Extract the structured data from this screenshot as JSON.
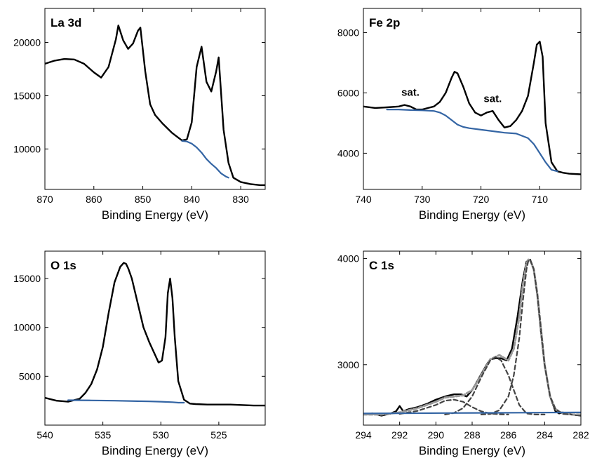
{
  "colors": {
    "spectrum": "#000000",
    "background_line": "#3465a4",
    "fit_envelope": "#9a9a9a",
    "fit_component": "#444444"
  },
  "chart_data": [
    {
      "id": "la3d",
      "type": "line",
      "title": "La 3d",
      "xlabel": "Binding Energy (eV)",
      "ylabel": "",
      "xlim": [
        870,
        825
      ],
      "ylim": [
        6200,
        23200
      ],
      "xticks": [
        870,
        860,
        850,
        840,
        830
      ],
      "xtick_labels": [
        "870",
        "860",
        "850",
        "840",
        "830"
      ],
      "yticks": [
        10000,
        15000,
        20000
      ],
      "ytick_labels": [
        "10000",
        "15000",
        "20000"
      ],
      "annotations": [],
      "series": [
        {
          "role": "spectrum",
          "x": [
            870,
            868,
            866,
            864,
            862,
            860,
            858.5,
            857,
            855.5,
            855,
            854,
            853,
            852,
            851,
            850.5,
            849.5,
            848.5,
            847.5,
            846,
            844,
            842,
            841,
            840,
            839,
            838,
            837,
            836,
            835,
            834.5,
            833.5,
            832.5,
            831.5,
            830,
            828,
            826,
            825
          ],
          "y": [
            18000,
            18300,
            18450,
            18400,
            18000,
            17200,
            16700,
            17700,
            20300,
            21600,
            20200,
            19400,
            19900,
            21100,
            21400,
            17300,
            14200,
            13200,
            12400,
            11500,
            10800,
            10900,
            12500,
            17700,
            19600,
            16300,
            15400,
            17300,
            18600,
            11800,
            8700,
            7300,
            6900,
            6700,
            6600,
            6600
          ]
        },
        {
          "role": "background",
          "x": [
            842,
            841,
            840,
            839,
            838,
            837,
            836,
            835,
            834,
            833,
            832.5
          ],
          "y": [
            10750,
            10700,
            10500,
            10150,
            9650,
            9050,
            8600,
            8200,
            7700,
            7400,
            7300
          ]
        }
      ]
    },
    {
      "id": "fe2p",
      "type": "line",
      "title": "Fe 2p",
      "xlabel": "Binding Energy (eV)",
      "ylabel": "",
      "xlim": [
        740,
        703
      ],
      "ylim": [
        2800,
        8800
      ],
      "xticks": [
        740,
        730,
        720,
        710
      ],
      "xtick_labels": [
        "740",
        "730",
        "720",
        "710"
      ],
      "yticks": [
        4000,
        6000,
        8000
      ],
      "ytick_labels": [
        "4000",
        "6000",
        "8000"
      ],
      "annotations": [
        "sat.",
        "sat."
      ],
      "series": [
        {
          "role": "spectrum",
          "x": [
            740,
            738,
            736,
            734,
            733,
            732,
            731,
            730,
            729,
            728,
            727,
            726,
            725,
            724.5,
            724,
            723,
            722,
            721,
            720,
            719,
            718,
            717,
            716,
            715,
            714,
            713,
            712,
            711,
            710.5,
            710,
            709.5,
            709,
            708,
            707,
            706,
            705,
            703
          ],
          "y": [
            5550,
            5500,
            5520,
            5550,
            5600,
            5550,
            5450,
            5450,
            5500,
            5550,
            5700,
            6000,
            6500,
            6700,
            6650,
            6200,
            5650,
            5350,
            5250,
            5350,
            5400,
            5100,
            4850,
            4900,
            5100,
            5400,
            5900,
            7000,
            7600,
            7700,
            7200,
            5000,
            3700,
            3400,
            3350,
            3320,
            3300
          ]
        },
        {
          "role": "background",
          "x": [
            736,
            734,
            732,
            730,
            728,
            727,
            726,
            725,
            724,
            723,
            722,
            720,
            718,
            716,
            714,
            712,
            711,
            710,
            709,
            708,
            707
          ],
          "y": [
            5450,
            5450,
            5430,
            5420,
            5400,
            5350,
            5250,
            5100,
            4950,
            4870,
            4830,
            4780,
            4730,
            4680,
            4650,
            4500,
            4300,
            4000,
            3700,
            3450,
            3400
          ]
        }
      ]
    },
    {
      "id": "o1s",
      "type": "line",
      "title": "O 1s",
      "xlabel": "Binding Energy (eV)",
      "ylabel": "",
      "xlim": [
        540,
        521
      ],
      "ylim": [
        0,
        17800
      ],
      "xticks": [
        540,
        535,
        530,
        525
      ],
      "xtick_labels": [
        "540",
        "535",
        "530",
        "525"
      ],
      "yticks": [
        5000,
        10000,
        15000
      ],
      "ytick_labels": [
        "5000",
        "10000",
        "15000"
      ],
      "annotations": [],
      "series": [
        {
          "role": "spectrum",
          "x": [
            540,
            539,
            538,
            537,
            536.5,
            536,
            535.5,
            535,
            534.5,
            534,
            533.5,
            533.2,
            533,
            532.8,
            532.5,
            532,
            531.5,
            531,
            530.5,
            530.2,
            529.9,
            529.6,
            529.4,
            529.2,
            529,
            528.8,
            528.5,
            528,
            527.5,
            527,
            526,
            524,
            522,
            521
          ],
          "y": [
            2800,
            2500,
            2400,
            2700,
            3300,
            4200,
            5700,
            8000,
            11500,
            14600,
            16200,
            16600,
            16500,
            16000,
            15000,
            12500,
            10000,
            8500,
            7200,
            6400,
            6600,
            9000,
            13500,
            15000,
            13000,
            9000,
            4500,
            2600,
            2200,
            2150,
            2100,
            2100,
            2000,
            2000
          ]
        },
        {
          "role": "background",
          "x": [
            538,
            536,
            534,
            532,
            531,
            530,
            529,
            528.5,
            528
          ],
          "y": [
            2550,
            2530,
            2500,
            2450,
            2430,
            2400,
            2350,
            2300,
            2300
          ]
        }
      ]
    },
    {
      "id": "c1s",
      "type": "line",
      "title": "C 1s",
      "xlabel": "Binding Energy (eV)",
      "ylabel": "",
      "xlim": [
        294,
        282
      ],
      "ylim": [
        2430,
        4070
      ],
      "xticks": [
        294,
        292,
        290,
        288,
        286,
        284,
        282
      ],
      "xtick_labels": [
        "294",
        "292",
        "290",
        "288",
        "286",
        "284",
        "282"
      ],
      "yticks": [
        3000,
        4000
      ],
      "ytick_labels": [
        "3000",
        "4000"
      ],
      "annotations": [],
      "series": [
        {
          "role": "spectrum",
          "x": [
            294,
            293.5,
            293,
            292.5,
            292.2,
            292,
            291.8,
            291.5,
            291,
            290.5,
            290,
            289.5,
            289,
            288.6,
            288.3,
            288,
            287.6,
            287.2,
            287,
            286.7,
            286.4,
            286.1,
            285.8,
            285.5,
            285.2,
            285,
            284.8,
            284.6,
            284.4,
            284.2,
            284,
            283.7,
            283.4,
            283.2,
            283,
            282.5,
            282
          ],
          "y": [
            2530,
            2540,
            2520,
            2540,
            2560,
            2610,
            2560,
            2580,
            2600,
            2630,
            2670,
            2700,
            2720,
            2720,
            2700,
            2760,
            2880,
            3000,
            3050,
            3060,
            3060,
            3040,
            3150,
            3450,
            3800,
            3970,
            3990,
            3900,
            3650,
            3300,
            3000,
            2700,
            2560,
            2540,
            2550,
            2530,
            2520
          ]
        },
        {
          "role": "fit_envelope",
          "x": [
            294,
            293,
            292,
            291,
            290,
            289.5,
            289,
            288.5,
            288,
            287.5,
            287,
            286.5,
            286,
            285.7,
            285.4,
            285.2,
            285,
            284.9,
            284.8,
            284.6,
            284.4,
            284.2,
            284,
            283.7,
            283.4,
            283,
            282.5,
            282
          ],
          "y": [
            2530,
            2530,
            2550,
            2590,
            2650,
            2690,
            2700,
            2710,
            2760,
            2900,
            3050,
            3090,
            3040,
            3150,
            3450,
            3750,
            3950,
            3990,
            3985,
            3900,
            3660,
            3330,
            3000,
            2700,
            2580,
            2540,
            2530,
            2530
          ]
        },
        {
          "role": "fit_component",
          "x": [
            292,
            291,
            290,
            289.5,
            289,
            288.5,
            288,
            287.5,
            287,
            286.5,
            286
          ],
          "y": [
            2535,
            2565,
            2620,
            2660,
            2670,
            2650,
            2600,
            2560,
            2540,
            2532,
            2530
          ]
        },
        {
          "role": "fit_component",
          "x": [
            289.5,
            289,
            288.5,
            288,
            287.5,
            287,
            286.7,
            286.4,
            286,
            285.7,
            285.4,
            285,
            284.5,
            284
          ],
          "y": [
            2530,
            2545,
            2590,
            2700,
            2880,
            3040,
            3070,
            3040,
            2900,
            2760,
            2620,
            2540,
            2530,
            2530
          ]
        },
        {
          "role": "fit_component",
          "x": [
            287.5,
            287,
            286.5,
            286,
            285.7,
            285.4,
            285.2,
            285,
            284.9,
            284.8,
            284.6,
            284.4,
            284.2,
            284,
            283.7,
            283.4,
            283,
            282.5
          ],
          "y": [
            2530,
            2535,
            2570,
            2700,
            2900,
            3250,
            3600,
            3900,
            3980,
            3990,
            3900,
            3660,
            3330,
            3000,
            2700,
            2580,
            2535,
            2530
          ]
        },
        {
          "role": "background",
          "x": [
            294,
            288,
            282
          ],
          "y": [
            2540,
            2545,
            2550
          ]
        }
      ]
    }
  ]
}
